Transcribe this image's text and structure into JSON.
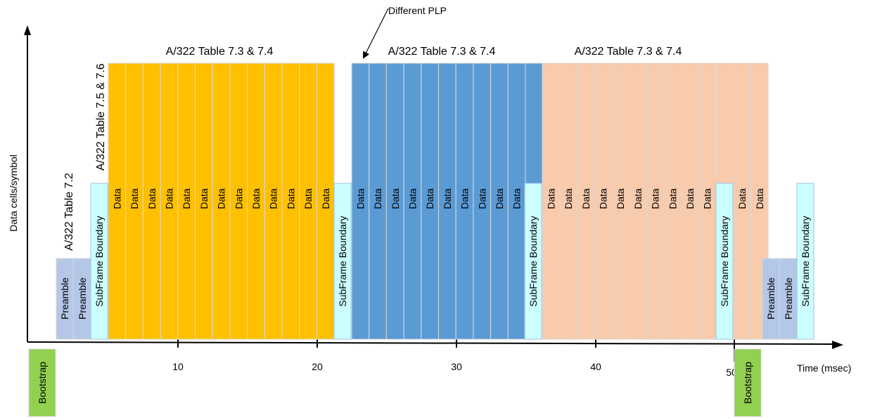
{
  "axes": {
    "y_label": "Data cells/symbol",
    "x_label": "Time (msec)",
    "x_ticks": [
      "10",
      "20",
      "30",
      "40",
      "50"
    ]
  },
  "annotations": {
    "table_7_2": "A/322 Table 7.2",
    "table_7_5_7_6": "A/322 Table 7.5 & 7.6",
    "group_1_table": "A/322 Table 7.3 & 7.4",
    "group_2_table": "A/322 Table 7.3 & 7.4",
    "group_3_table": "A/322 Table 7.3 & 7.4",
    "different_plp": "Different PLP"
  },
  "blocks": {
    "preamble": "Preamble",
    "subframe_boundary": "SubFrame Boundary",
    "data": "Data",
    "bootstrap": "Bootstrap"
  },
  "frame": {
    "data_cells_per_subframe": 13,
    "subframe_count": 3,
    "subframe_colors": [
      "#FFC000",
      "#5B9BD5",
      "#F8CBAD"
    ]
  },
  "colors": {
    "preamble": "#B4C7E7",
    "subframe_boundary": "#CCFFFF",
    "bootstrap": "#92D050",
    "cell_border": "#D9D9D9"
  }
}
